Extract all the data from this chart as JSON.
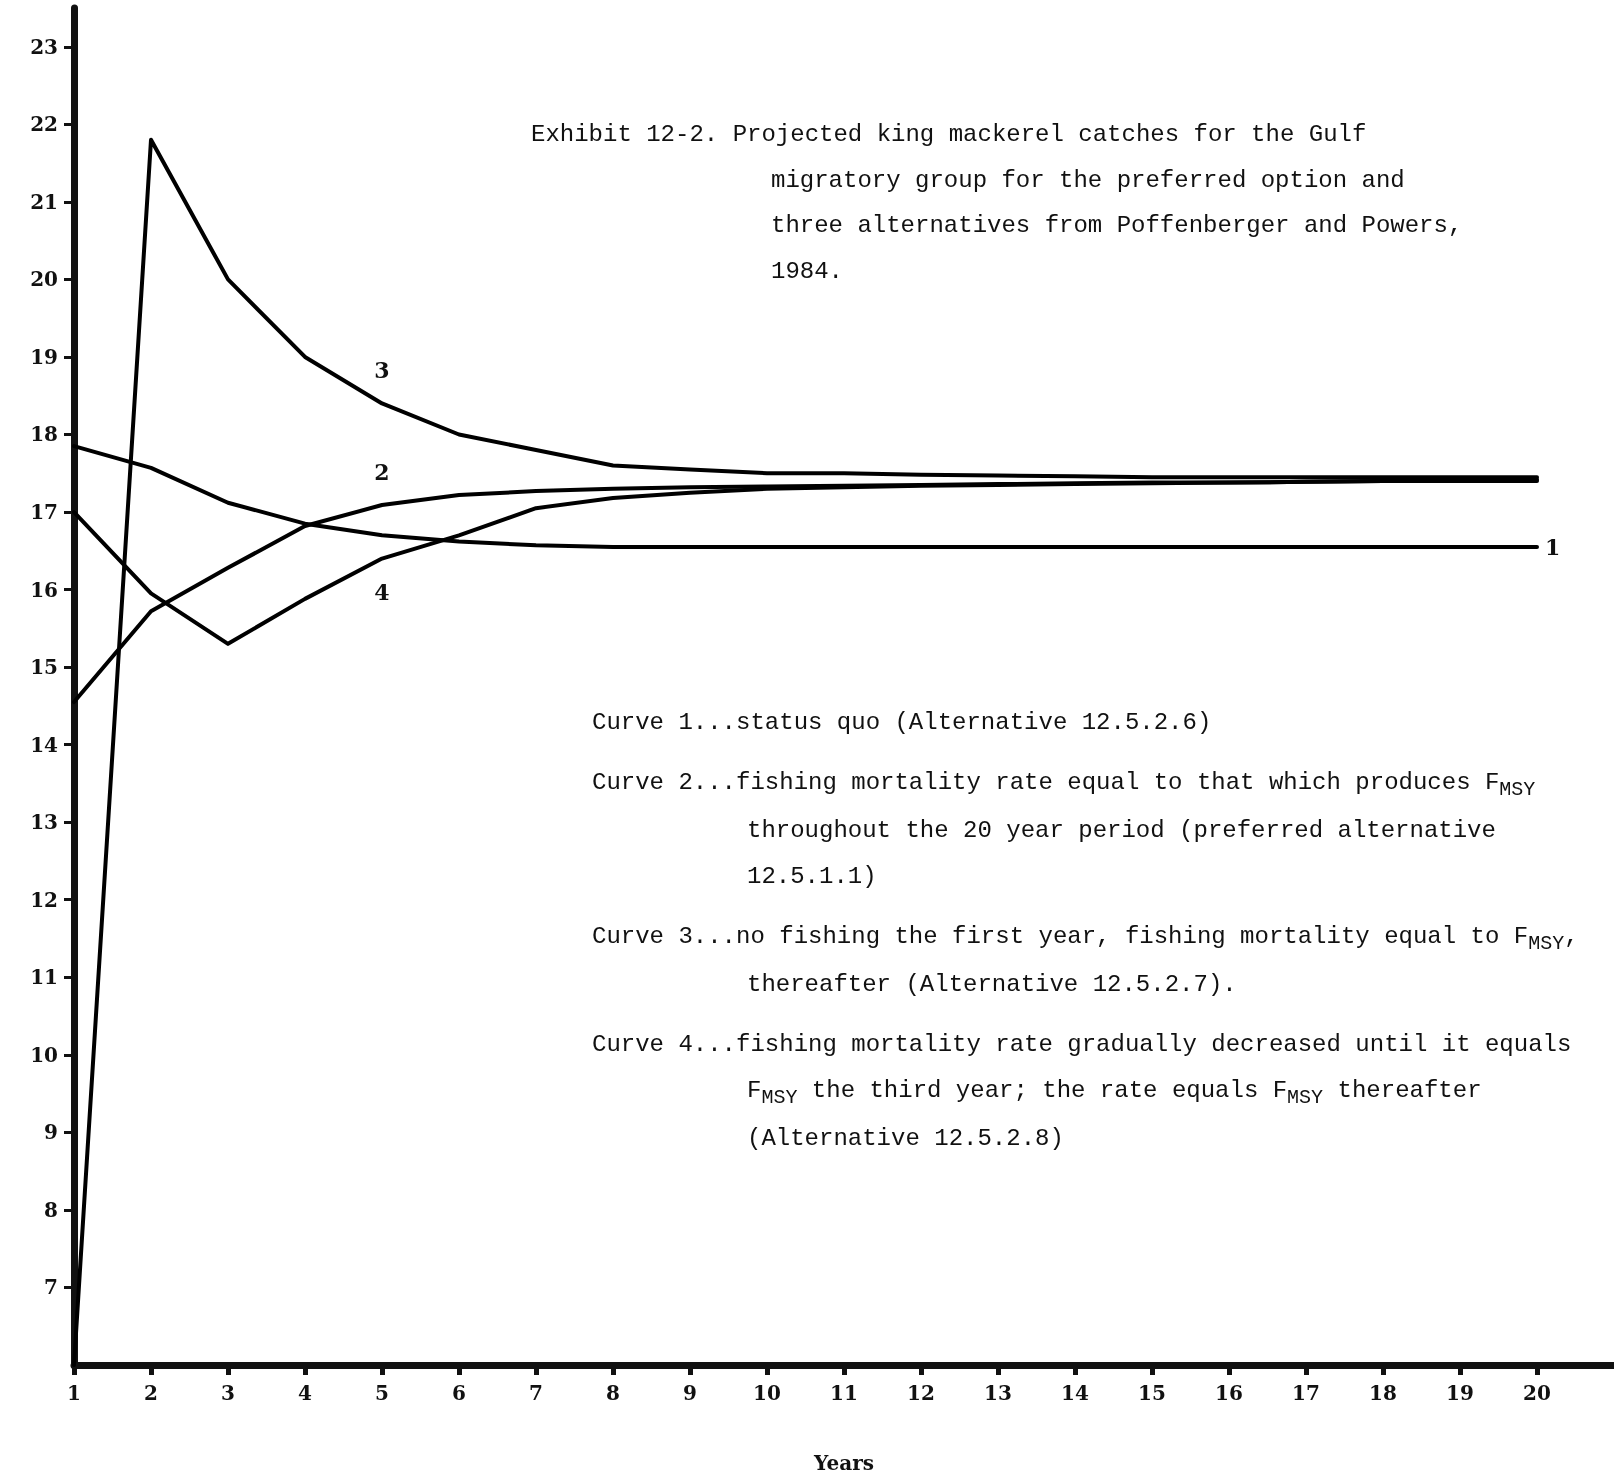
{
  "chart_data": {
    "type": "line",
    "title": "Exhibit 12-2. Projected king mackerel catches for the Gulf migratory group for the preferred option and three alternatives from Poffenberger and Powers, 1984.",
    "xlabel": "Years",
    "x": [
      1,
      2,
      3,
      4,
      5,
      6,
      7,
      8,
      9,
      10,
      11,
      12,
      13,
      14,
      15,
      16,
      17,
      18,
      19,
      20
    ],
    "series": [
      {
        "name": "1",
        "color": "#000000",
        "values": [
          17.85,
          17.57,
          17.12,
          16.85,
          16.7,
          16.62,
          16.57,
          16.55,
          16.55,
          16.55,
          16.55,
          16.55,
          16.55,
          16.55,
          16.55,
          16.55,
          16.55,
          16.55,
          16.55,
          16.55
        ]
      },
      {
        "name": "2",
        "color": "#000000",
        "values": [
          14.55,
          15.72,
          16.28,
          16.82,
          17.09,
          17.22,
          17.27,
          17.3,
          17.32,
          17.33,
          17.34,
          17.35,
          17.36,
          17.37,
          17.38,
          17.38,
          17.39,
          17.4,
          17.4,
          17.4
        ]
      },
      {
        "name": "3",
        "color": "#000000",
        "values": [
          6,
          21.8,
          20,
          19,
          18.4,
          18,
          17.8,
          17.6,
          17.55,
          17.5,
          17.5,
          17.48,
          17.47,
          17.46,
          17.45,
          17.45,
          17.45,
          17.45,
          17.45,
          17.45
        ]
      },
      {
        "name": "4",
        "color": "#000000",
        "values": [
          17,
          15.95,
          15.3,
          15.88,
          16.4,
          16.7,
          17.05,
          17.18,
          17.25,
          17.3,
          17.32,
          17.34,
          17.35,
          17.36,
          17.37,
          17.38,
          17.39,
          17.4,
          17.41,
          17.42
        ]
      }
    ],
    "xlim": [
      1,
      21
    ],
    "xticks": [
      1,
      2,
      3,
      4,
      5,
      6,
      7,
      8,
      9,
      10,
      11,
      12,
      13,
      14,
      15,
      16,
      17,
      18,
      19,
      20
    ],
    "ylim": [
      6,
      23.5
    ],
    "yticks": [
      7,
      8,
      9,
      10,
      11,
      12,
      13,
      14,
      15,
      16,
      17,
      18,
      19,
      20,
      21,
      22,
      23
    ],
    "grid": false,
    "legend": false,
    "marker": "none",
    "line_style": "solid",
    "annotations": [
      "Curve 1...status quo (Alternative 12.5.2.6)",
      "Curve 2...fishing mortality rate equal to that which produces F$_{MSY}$ throughout the 20 year period (preferred alternative 12.5.1.1)",
      "Curve 3...no fishing the first year, fishing mortality equal to F$_{MSY}$, thereafter (Alternative 12.5.2.7).",
      "Curve 4...fishing mortality rate gradually decreased until it equals F$_{MSY}$ the third year; the rate equals F$_{MSY}$ thereafter (Alternative 12.5.2.8)"
    ]
  }
}
